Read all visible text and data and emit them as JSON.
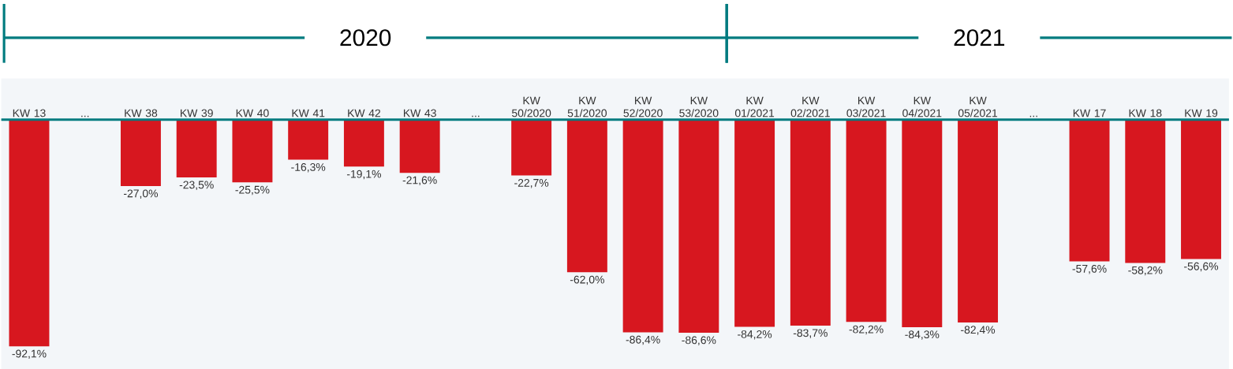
{
  "chart_data": {
    "type": "bar",
    "color": "#d7171f",
    "categories": [
      "KW 13",
      "...",
      "KW 38",
      "KW 39",
      "KW 40",
      "KW 41",
      "KW 42",
      "KW 43",
      "...",
      "KW 50/2020",
      "KW 51/2020",
      "KW 52/2020",
      "KW 53/2020",
      "KW 01/2021",
      "KW 02/2021",
      "KW 03/2021",
      "KW 04/2021",
      "KW 05/2021",
      "...",
      "KW 17",
      "KW 18",
      "KW 19"
    ],
    "values": [
      -92.1,
      null,
      -27.0,
      -23.5,
      -25.5,
      -16.3,
      -19.1,
      -21.6,
      null,
      -22.7,
      -62.0,
      -86.4,
      -86.6,
      -84.2,
      -83.7,
      -82.2,
      -84.3,
      -82.4,
      null,
      -57.6,
      -58.2,
      -56.6
    ],
    "value_labels": [
      "-92,1%",
      null,
      "-27,0%",
      "-23,5%",
      "-25,5%",
      "-16,3%",
      "-19,1%",
      "-21,6%",
      null,
      "-22,7%",
      "-62,0%",
      "-86,4%",
      "-86,6%",
      "-84,2%",
      "-83,7%",
      "-82,2%",
      "-84,3%",
      "-82,4%",
      null,
      "-57,6%",
      "-58,2%",
      "-56,6%"
    ],
    "annotations": [
      "2020",
      "2021"
    ]
  }
}
